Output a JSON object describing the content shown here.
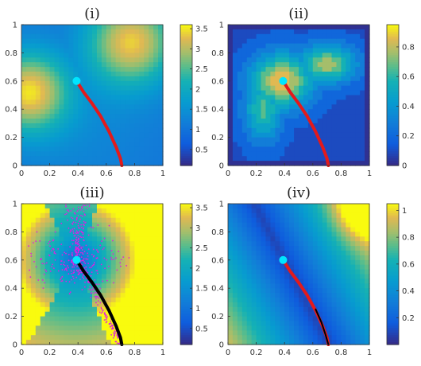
{
  "chart_data": [
    {
      "type": "heatmap",
      "title": "(i)",
      "xlim": [
        0,
        1
      ],
      "ylim": [
        0,
        1
      ],
      "x_ticks": [
        "0",
        "0.2",
        "0.4",
        "0.6",
        "0.8",
        "1"
      ],
      "y_ticks": [
        "0",
        "0.2",
        "0.4",
        "0.6",
        "0.8",
        "1"
      ],
      "colorbar": {
        "range": [
          0.1,
          3.6
        ],
        "ticks": [
          "0.5",
          "1",
          "1.5",
          "2",
          "2.5",
          "3",
          "3.5"
        ],
        "colormap": "parula"
      },
      "start_point": {
        "x": 0.39,
        "y": 0.6,
        "color": "#00e5ff"
      },
      "path": {
        "color": "#e31a1c",
        "x": [
          0.39,
          0.44,
          0.5,
          0.56,
          0.62,
          0.67,
          0.7,
          0.71
        ],
        "y": [
          0.6,
          0.52,
          0.44,
          0.35,
          0.24,
          0.13,
          0.05,
          0.0
        ]
      }
    },
    {
      "type": "heatmap",
      "title": "(ii)",
      "xlim": [
        0,
        1
      ],
      "ylim": [
        0,
        1
      ],
      "x_ticks": [
        "0",
        "0.2",
        "0.4",
        "0.6",
        "0.8",
        "1"
      ],
      "y_ticks": [
        "0",
        "0.2",
        "0.4",
        "0.6",
        "0.8",
        "1"
      ],
      "colorbar": {
        "range": [
          0,
          0.95
        ],
        "ticks": [
          "0",
          "0.2",
          "0.4",
          "0.6",
          "0.8"
        ],
        "colormap": "parula"
      },
      "start_point": {
        "x": 0.39,
        "y": 0.6,
        "color": "#00e5ff"
      },
      "path": {
        "color": "#e31a1c",
        "x": [
          0.39,
          0.44,
          0.5,
          0.56,
          0.62,
          0.67,
          0.7,
          0.71
        ],
        "y": [
          0.6,
          0.52,
          0.44,
          0.35,
          0.24,
          0.13,
          0.05,
          0.0
        ]
      }
    },
    {
      "type": "heatmap",
      "title": "(iii)",
      "xlim": [
        0,
        1
      ],
      "ylim": [
        0,
        1
      ],
      "x_ticks": [
        "0",
        "0.2",
        "0.4",
        "0.6",
        "0.8",
        "1"
      ],
      "y_ticks": [
        "0",
        "0.2",
        "0.4",
        "0.6",
        "0.8",
        "1"
      ],
      "colorbar": {
        "range": [
          0.1,
          3.6
        ],
        "ticks": [
          "0.5",
          "1",
          "1.5",
          "2",
          "2.5",
          "3",
          "3.5"
        ],
        "colormap": "parula"
      },
      "start_point": {
        "x": 0.39,
        "y": 0.6,
        "color": "#00e5ff"
      },
      "path": {
        "color": "#000000",
        "x": [
          0.39,
          0.44,
          0.5,
          0.56,
          0.62,
          0.67,
          0.7,
          0.71
        ],
        "y": [
          0.6,
          0.52,
          0.44,
          0.35,
          0.24,
          0.13,
          0.05,
          0.0
        ]
      },
      "scatter_color": "#e020e0"
    },
    {
      "type": "heatmap",
      "title": "(iv)",
      "xlim": [
        0,
        1
      ],
      "ylim": [
        0,
        1
      ],
      "x_ticks": [
        "0",
        "0.2",
        "0.4",
        "0.6",
        "0.8",
        "1"
      ],
      "y_ticks": [
        "0",
        "0.2",
        "0.4",
        "0.6",
        "0.8",
        "1"
      ],
      "colorbar": {
        "range": [
          0,
          1.05
        ],
        "ticks": [
          "0.2",
          "0.4",
          "0.6",
          "0.8",
          "1"
        ],
        "colormap": "parula"
      },
      "start_point": {
        "x": 0.39,
        "y": 0.6,
        "color": "#00e5ff"
      },
      "path": {
        "color": "#e31a1c",
        "x": [
          0.39,
          0.44,
          0.5,
          0.56,
          0.62,
          0.67,
          0.7,
          0.71
        ],
        "y": [
          0.6,
          0.52,
          0.44,
          0.35,
          0.24,
          0.13,
          0.05,
          0.0
        ]
      },
      "overlay_path": {
        "color": "#000000",
        "x": [
          0.62,
          0.66,
          0.69,
          0.71
        ],
        "y": [
          0.25,
          0.16,
          0.07,
          0.0
        ]
      }
    }
  ]
}
